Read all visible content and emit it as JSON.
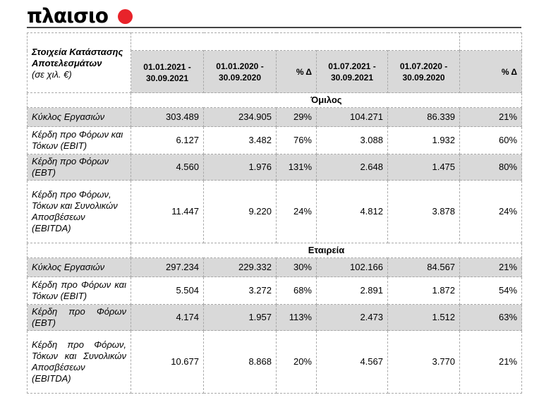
{
  "brand": {
    "logo_text": "πλαισιο",
    "dot_color": "#e8232a"
  },
  "table": {
    "corner_title": "Στοιχεία Κατάστασης Αποτελεσμάτων",
    "corner_sub": "(σε χιλ. €)",
    "columns": [
      "01.01.2021 - 30.09.2021",
      "01.01.2020 - 30.09.2020",
      "% Δ",
      "01.07.2021 - 30.09.2021",
      "01.07.2020 - 30.09.2020",
      "% Δ"
    ],
    "sections": [
      {
        "title": "Όμιλος",
        "rows": [
          {
            "label": "Κύκλος Εργασιών",
            "values": [
              "303.489",
              "234.905",
              "29%",
              "104.271",
              "86.339",
              "21%"
            ]
          },
          {
            "label": "Κέρδη προ Φόρων και Τόκων (EBIT)",
            "values": [
              "6.127",
              "3.482",
              "76%",
              "3.088",
              "1.932",
              "60%"
            ]
          },
          {
            "label": "Κέρδη προ Φόρων (EBT)",
            "values": [
              "4.560",
              "1.976",
              "131%",
              "2.648",
              "1.475",
              "80%"
            ]
          },
          {
            "label": "Κέρδη προ Φόρων, Τόκων και Συνολικών Αποσβέσεων (EBITDA)",
            "values": [
              "11.447",
              "9.220",
              "24%",
              "4.812",
              "3.878",
              "24%"
            ]
          }
        ]
      },
      {
        "title": "Εταιρεία",
        "rows": [
          {
            "label": "Κύκλος Εργασιών",
            "values": [
              "297.234",
              "229.332",
              "30%",
              "102.166",
              "84.567",
              "21%"
            ]
          },
          {
            "label": "Κέρδη προ Φόρων και Τόκων (EBIT)",
            "values": [
              "5.504",
              "3.272",
              "68%",
              "2.891",
              "1.872",
              "54%"
            ]
          },
          {
            "label": "Κέρδη προ Φόρων (EBT)",
            "values": [
              "4.174",
              "1.957",
              "113%",
              "2.473",
              "1.512",
              "63%"
            ]
          },
          {
            "label": "Κέρδη προ Φόρων, Τόκων και Συνολικών Αποσβέσεων (EBITDA)",
            "values": [
              "10.677",
              "8.868",
              "20%",
              "4.567",
              "3.770",
              "21%"
            ]
          }
        ]
      }
    ]
  }
}
